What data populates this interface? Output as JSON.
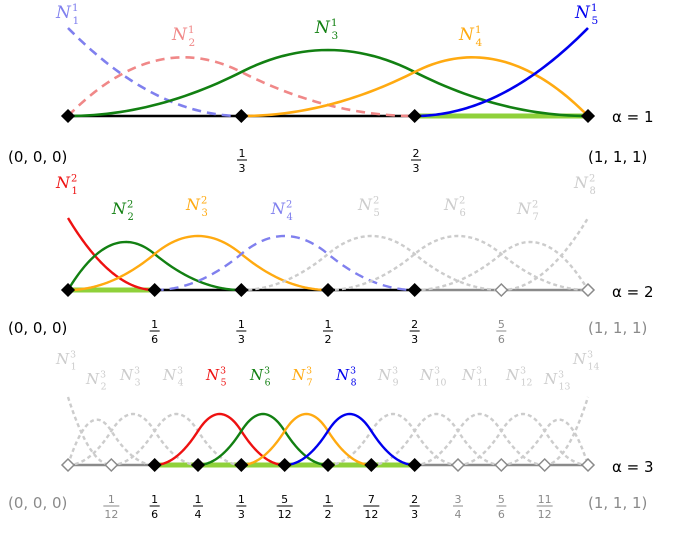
{
  "colors": {
    "black": "#000000",
    "gray": "#8a8a8a",
    "light_gray": "#cccccc",
    "highlight": "#8fd13a",
    "red": "#ee1111",
    "pink": "#f08888",
    "green": "#128012",
    "orange": "#ffaa11",
    "blue": "#0000ee",
    "light_blue": "#8080ee"
  },
  "levels": [
    {
      "alpha_label": "α = 1",
      "left_point": "(0, 0, 0)",
      "right_point": "(1, 1, 1)",
      "knots": [
        {
          "num": "1",
          "den": "3"
        },
        {
          "num": "2",
          "den": "3"
        }
      ],
      "functions": [
        {
          "base": "N",
          "sub": "1",
          "sup": "1",
          "color": "light_blue",
          "style": "dashed"
        },
        {
          "base": "N",
          "sub": "2",
          "sup": "1",
          "color": "pink",
          "style": "dashed"
        },
        {
          "base": "N",
          "sub": "3",
          "sup": "1",
          "color": "green",
          "style": "solid"
        },
        {
          "base": "N",
          "sub": "4",
          "sup": "1",
          "color": "orange",
          "style": "solid"
        },
        {
          "base": "N",
          "sub": "5",
          "sup": "1",
          "color": "blue",
          "style": "solid"
        }
      ]
    },
    {
      "alpha_label": "α = 2",
      "left_point": "(0, 0, 0)",
      "right_point": "(1, 1, 1)",
      "knots": [
        {
          "num": "1",
          "den": "6"
        },
        {
          "num": "1",
          "den": "3"
        },
        {
          "num": "1",
          "den": "2"
        },
        {
          "num": "2",
          "den": "3"
        },
        {
          "num": "5",
          "den": "6"
        }
      ],
      "functions": [
        {
          "base": "N",
          "sub": "1",
          "sup": "2",
          "color": "red",
          "style": "solid"
        },
        {
          "base": "N",
          "sub": "2",
          "sup": "2",
          "color": "green",
          "style": "solid"
        },
        {
          "base": "N",
          "sub": "3",
          "sup": "2",
          "color": "orange",
          "style": "solid"
        },
        {
          "base": "N",
          "sub": "4",
          "sup": "2",
          "color": "light_blue",
          "style": "dashed"
        },
        {
          "base": "N",
          "sub": "5",
          "sup": "2",
          "color": "light_gray",
          "style": "dotted"
        },
        {
          "base": "N",
          "sub": "6",
          "sup": "2",
          "color": "light_gray",
          "style": "dotted"
        },
        {
          "base": "N",
          "sub": "7",
          "sup": "2",
          "color": "light_gray",
          "style": "dotted"
        },
        {
          "base": "N",
          "sub": "8",
          "sup": "2",
          "color": "light_gray",
          "style": "dotted"
        }
      ]
    },
    {
      "alpha_label": "α = 3",
      "left_point": "(0, 0, 0)",
      "right_point": "(1, 1, 1)",
      "knots": [
        {
          "num": "1",
          "den": "12"
        },
        {
          "num": "1",
          "den": "6"
        },
        {
          "num": "1",
          "den": "4"
        },
        {
          "num": "1",
          "den": "3"
        },
        {
          "num": "5",
          "den": "12"
        },
        {
          "num": "1",
          "den": "2"
        },
        {
          "num": "7",
          "den": "12"
        },
        {
          "num": "2",
          "den": "3"
        },
        {
          "num": "3",
          "den": "4"
        },
        {
          "num": "5",
          "den": "6"
        },
        {
          "num": "11",
          "den": "12"
        }
      ],
      "functions": [
        {
          "base": "N",
          "sub": "1",
          "sup": "3",
          "color": "light_gray",
          "style": "dotted"
        },
        {
          "base": "N",
          "sub": "2",
          "sup": "3",
          "color": "light_gray",
          "style": "dotted"
        },
        {
          "base": "N",
          "sub": "3",
          "sup": "3",
          "color": "light_gray",
          "style": "dotted"
        },
        {
          "base": "N",
          "sub": "4",
          "sup": "3",
          "color": "light_gray",
          "style": "dotted"
        },
        {
          "base": "N",
          "sub": "5",
          "sup": "3",
          "color": "red",
          "style": "solid"
        },
        {
          "base": "N",
          "sub": "6",
          "sup": "3",
          "color": "green",
          "style": "solid"
        },
        {
          "base": "N",
          "sub": "7",
          "sup": "3",
          "color": "orange",
          "style": "solid"
        },
        {
          "base": "N",
          "sub": "8",
          "sup": "3",
          "color": "blue",
          "style": "solid"
        },
        {
          "base": "N",
          "sub": "9",
          "sup": "3",
          "color": "light_gray",
          "style": "dotted"
        },
        {
          "base": "N",
          "sub": "10",
          "sup": "3",
          "color": "light_gray",
          "style": "dotted"
        },
        {
          "base": "N",
          "sub": "11",
          "sup": "3",
          "color": "light_gray",
          "style": "dotted"
        },
        {
          "base": "N",
          "sub": "12",
          "sup": "3",
          "color": "light_gray",
          "style": "dotted"
        },
        {
          "base": "N",
          "sub": "13",
          "sup": "3",
          "color": "light_gray",
          "style": "dotted"
        },
        {
          "base": "N",
          "sub": "14",
          "sup": "3",
          "color": "light_gray",
          "style": "dotted"
        }
      ]
    }
  ]
}
